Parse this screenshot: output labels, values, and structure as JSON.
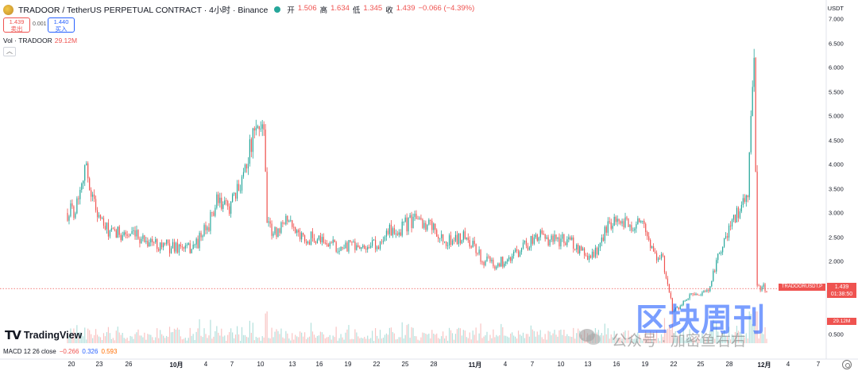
{
  "header": {
    "symbol_title": "TRADOOR / TetherUS PERPETUAL CONTRACT · 4小时 · Binance",
    "ohlc": [
      {
        "k": "开",
        "v": "1.506"
      },
      {
        "k": "高",
        "v": "1.634"
      },
      {
        "k": "低",
        "v": "1.345"
      },
      {
        "k": "收",
        "v": "1.439"
      },
      {
        "k": "",
        "v": "−0.066 (−4.39%)"
      }
    ]
  },
  "trade": {
    "sell_price": "1.439",
    "sell_label": "卖出",
    "spread": "0.001",
    "buy_price": "1.440",
    "buy_label": "买入"
  },
  "volume_legend": {
    "label": "Vol · TRADOOR",
    "value": "29.12M"
  },
  "price_axis": {
    "currency": "USDT",
    "ticks": [
      "7.000",
      "6.500",
      "6.000",
      "5.500",
      "5.000",
      "4.500",
      "4.000",
      "3.500",
      "3.000",
      "2.500",
      "2.000",
      "0.500"
    ]
  },
  "last_price": {
    "price": "1.439",
    "countdown": "01:38:50",
    "ticker": "TRADOORUSDT.P",
    "volume": "29.12M"
  },
  "macd": {
    "label": "MACD 12 26 close",
    "v0": "−0.266",
    "v1": "0.326",
    "v2": "0.593"
  },
  "time_axis": [
    {
      "t": "20",
      "bold": false
    },
    {
      "t": "23",
      "bold": false
    },
    {
      "t": "26",
      "bold": false
    },
    {
      "t": "10月",
      "bold": true
    },
    {
      "t": "4",
      "bold": false
    },
    {
      "t": "7",
      "bold": false
    },
    {
      "t": "10",
      "bold": false
    },
    {
      "t": "13",
      "bold": false
    },
    {
      "t": "16",
      "bold": false
    },
    {
      "t": "19",
      "bold": false
    },
    {
      "t": "22",
      "bold": false
    },
    {
      "t": "25",
      "bold": false
    },
    {
      "t": "28",
      "bold": false
    },
    {
      "t": "11月",
      "bold": true
    },
    {
      "t": "4",
      "bold": false
    },
    {
      "t": "7",
      "bold": false
    },
    {
      "t": "10",
      "bold": false
    },
    {
      "t": "13",
      "bold": false
    },
    {
      "t": "16",
      "bold": false
    },
    {
      "t": "19",
      "bold": false
    },
    {
      "t": "22",
      "bold": false
    },
    {
      "t": "25",
      "bold": false
    },
    {
      "t": "28",
      "bold": false
    },
    {
      "t": "12月",
      "bold": true
    },
    {
      "t": "4",
      "bold": false
    },
    {
      "t": "7",
      "bold": false
    }
  ],
  "branding": {
    "logo": "TradingView"
  },
  "watermark": {
    "big": "区块周刊",
    "small": "公众号 · 加密鱼右右"
  },
  "colors": {
    "up": "#26a69a",
    "down": "#ef5350",
    "accent": "#2962ff"
  },
  "chart_data": {
    "type": "candlestick",
    "interval": "4小时",
    "x_ticks": [
      "20",
      "23",
      "26",
      "10月",
      "4",
      "7",
      "10",
      "13",
      "16",
      "19",
      "22",
      "25",
      "28",
      "11月",
      "4",
      "7",
      "10",
      "13",
      "16",
      "19",
      "22",
      "25",
      "28",
      "12月",
      "4",
      "7"
    ],
    "y_ticks": [
      7.0,
      6.5,
      6.0,
      5.5,
      5.0,
      4.5,
      4.0,
      3.5,
      3.0,
      2.5,
      2.0
    ],
    "ylim": [
      0.9,
      7.05
    ],
    "grid": false,
    "close_path": [
      {
        "date": "09-19",
        "close": 3.0
      },
      {
        "date": "09-20",
        "close": 3.1
      },
      {
        "date": "09-21",
        "close": 4.0
      },
      {
        "date": "09-22",
        "close": 3.2
      },
      {
        "date": "09-23",
        "close": 2.7
      },
      {
        "date": "09-24",
        "close": 2.55
      },
      {
        "date": "09-25",
        "close": 2.6
      },
      {
        "date": "09-26",
        "close": 2.5
      },
      {
        "date": "09-27",
        "close": 2.5
      },
      {
        "date": "09-28",
        "close": 2.4
      },
      {
        "date": "09-29",
        "close": 2.35
      },
      {
        "date": "09-30",
        "close": 2.3
      },
      {
        "date": "10-01",
        "close": 2.3
      },
      {
        "date": "10-02",
        "close": 2.25
      },
      {
        "date": "10-03",
        "close": 2.4
      },
      {
        "date": "10-04",
        "close": 2.7
      },
      {
        "date": "10-05",
        "close": 3.2
      },
      {
        "date": "10-06",
        "close": 3.1
      },
      {
        "date": "10-07",
        "close": 3.3
      },
      {
        "date": "10-08",
        "close": 4.0
      },
      {
        "date": "10-09",
        "close": 4.6
      },
      {
        "date": "10-10",
        "close": 4.9
      },
      {
        "date": "10-11",
        "close": 2.8
      },
      {
        "date": "10-12",
        "close": 2.55
      },
      {
        "date": "10-13",
        "close": 2.8
      },
      {
        "date": "10-14",
        "close": 2.6
      },
      {
        "date": "10-15",
        "close": 2.45
      },
      {
        "date": "10-16",
        "close": 2.5
      },
      {
        "date": "10-17",
        "close": 2.4
      },
      {
        "date": "10-18",
        "close": 2.35
      },
      {
        "date": "10-19",
        "close": 2.3
      },
      {
        "date": "10-20",
        "close": 2.35
      },
      {
        "date": "10-21",
        "close": 2.3
      },
      {
        "date": "10-22",
        "close": 2.35
      },
      {
        "date": "10-23",
        "close": 2.4
      },
      {
        "date": "10-24",
        "close": 2.6
      },
      {
        "date": "10-25",
        "close": 2.65
      },
      {
        "date": "10-26",
        "close": 2.8
      },
      {
        "date": "10-27",
        "close": 2.9
      },
      {
        "date": "10-28",
        "close": 2.8
      },
      {
        "date": "10-29",
        "close": 2.6
      },
      {
        "date": "10-30",
        "close": 2.4
      },
      {
        "date": "10-31",
        "close": 2.45
      },
      {
        "date": "11-01",
        "close": 2.5
      },
      {
        "date": "11-02",
        "close": 2.3
      },
      {
        "date": "11-03",
        "close": 2.0
      },
      {
        "date": "11-04",
        "close": 1.95
      },
      {
        "date": "11-05",
        "close": 2.0
      },
      {
        "date": "11-06",
        "close": 2.05
      },
      {
        "date": "11-07",
        "close": 2.3
      },
      {
        "date": "11-08",
        "close": 2.4
      },
      {
        "date": "11-09",
        "close": 2.5
      },
      {
        "date": "11-10",
        "close": 2.45
      },
      {
        "date": "11-11",
        "close": 2.4
      },
      {
        "date": "11-12",
        "close": 2.5
      },
      {
        "date": "11-13",
        "close": 2.2
      },
      {
        "date": "11-14",
        "close": 2.1
      },
      {
        "date": "11-15",
        "close": 2.2
      },
      {
        "date": "11-16",
        "close": 2.7
      },
      {
        "date": "11-17",
        "close": 2.9
      },
      {
        "date": "11-18",
        "close": 2.75
      },
      {
        "date": "11-19",
        "close": 2.8
      },
      {
        "date": "11-20",
        "close": 2.8
      },
      {
        "date": "11-21",
        "close": 2.2
      },
      {
        "date": "11-22",
        "close": 2.05
      },
      {
        "date": "11-23",
        "close": 1.0
      },
      {
        "date": "11-24",
        "close": 1.1
      },
      {
        "date": "11-25",
        "close": 1.3
      },
      {
        "date": "11-26",
        "close": 1.25
      },
      {
        "date": "11-27",
        "close": 1.5
      },
      {
        "date": "11-28",
        "close": 2.2
      },
      {
        "date": "11-29",
        "close": 2.6
      },
      {
        "date": "11-30",
        "close": 3.0
      },
      {
        "date": "12-01",
        "close": 3.5
      },
      {
        "date": "12-02",
        "close": 5.0
      },
      {
        "date": "12-02 16:00",
        "close": 6.2
      },
      {
        "date": "12-03",
        "close": 1.5
      },
      {
        "date": "12-03 08:00",
        "close": 1.439
      }
    ]
  }
}
